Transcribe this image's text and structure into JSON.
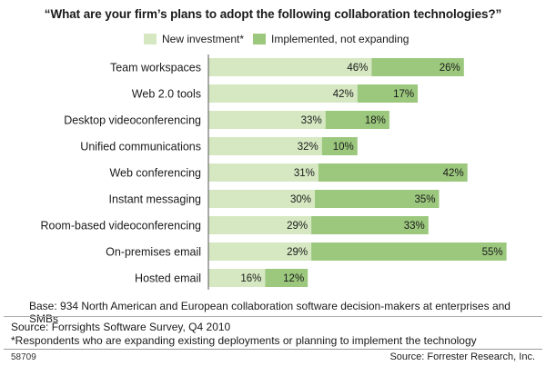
{
  "colors": {
    "new_investment": "#d5e8c1",
    "implemented": "#9cc87e",
    "axis": "#555555"
  },
  "chart_data": {
    "type": "bar",
    "orientation": "horizontal",
    "stacked": true,
    "title": "“What are your firm’s plans to adopt the following collaboration technologies?”",
    "categories": [
      "Team workspaces",
      "Web 2.0 tools",
      "Desktop videoconferencing",
      "Unified communications",
      "Web conferencing",
      "Instant messaging",
      "Room-based videoconferencing",
      "On-premises email",
      "Hosted email"
    ],
    "series": [
      {
        "name": "New investment*",
        "values": [
          46,
          42,
          33,
          32,
          31,
          30,
          29,
          29,
          16
        ]
      },
      {
        "name": "Implemented, not expanding",
        "values": [
          26,
          17,
          18,
          10,
          42,
          35,
          33,
          55,
          12
        ]
      }
    ],
    "value_suffix": "%",
    "legend_position": "top",
    "grid": false
  },
  "footer": {
    "base": "Base: 934 North American and European collaboration software decision-makers at enterprises and SMBs",
    "source": "Source: Forrsights Software Survey, Q4 2010",
    "note": "*Respondents who are expanding existing deployments or planning to implement the technology",
    "figure_id": "58709",
    "credit": "Source: Forrester Research, Inc."
  }
}
